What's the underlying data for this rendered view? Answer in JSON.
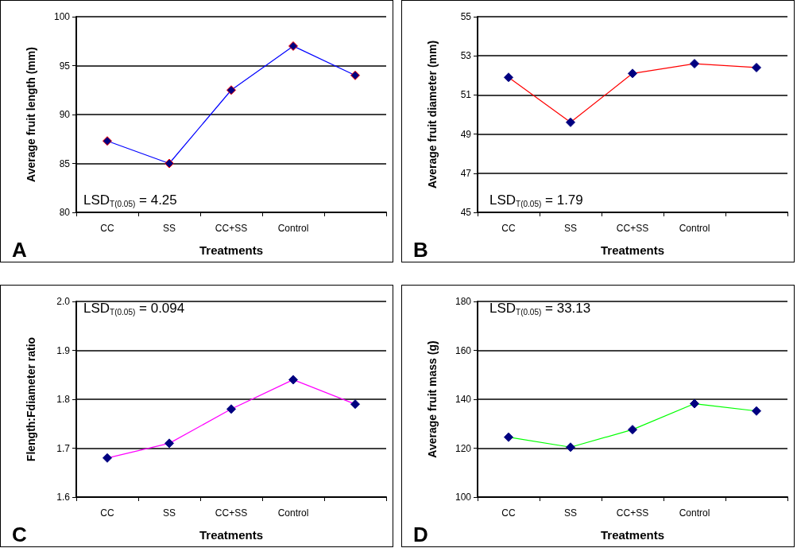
{
  "chart_data": [
    {
      "type": "line",
      "categories": [
        "CC",
        "SS",
        "CC+SS",
        "Control",
        null
      ],
      "xlabel": "Treatments",
      "ylabel": "Average fruit length (mm)",
      "series": [
        {
          "color": "#0000ff",
          "values": [
            87.3,
            85.0,
            92.5,
            97.0,
            94.0
          ]
        }
      ],
      "ylim": [
        80,
        100
      ],
      "yticks": [
        80,
        85,
        90,
        95,
        100
      ],
      "grid": "y",
      "marker": "diamond",
      "annotations": [
        "A",
        "LSD$_{T(0.05)}$ = 4.25"
      ]
    },
    {
      "type": "line",
      "categories": [
        "CC",
        "SS",
        "CC+SS",
        "Control",
        null
      ],
      "xlabel": "Treatments",
      "ylabel": "Average fruit diameter (mm)",
      "series": [
        {
          "color": "#ff0000",
          "values": [
            51.9,
            49.6,
            52.1,
            52.6,
            52.4
          ]
        }
      ],
      "ylim": [
        45,
        55
      ],
      "yticks": [
        45,
        47,
        49,
        51,
        53,
        55
      ],
      "grid": "y",
      "marker": "diamond",
      "annotations": [
        "B",
        "LSD$_{T(0.05)}$ = 1.79"
      ]
    },
    {
      "type": "line",
      "categories": [
        "CC",
        "SS",
        "CC+SS",
        "Control",
        null
      ],
      "xlabel": "Treatments",
      "ylabel": "Flength:Fdiameter ratio",
      "series": [
        {
          "color": "#ff00ff",
          "values": [
            1.68,
            1.71,
            1.78,
            1.84,
            1.79
          ]
        }
      ],
      "ylim": [
        1.6,
        2.0
      ],
      "yticks": [
        {
          "value": 1.6,
          "label": "1.6"
        },
        {
          "value": 1.7,
          "label": "1.7"
        },
        {
          "value": 1.8,
          "label": "1.8"
        },
        {
          "value": 1.9,
          "label": "1.9"
        },
        {
          "value": 2.0,
          "label": "2.0"
        }
      ],
      "grid": "y",
      "marker": "diamond",
      "annotations": [
        "C",
        "LSD$_{T(0.05)}$ = 0.094"
      ]
    },
    {
      "type": "line",
      "categories": [
        "CC",
        "SS",
        "CC+SS",
        "Control",
        null
      ],
      "xlabel": "Treatments",
      "ylabel": "Average fruit mass (g)",
      "series": [
        {
          "color": "#00ff00",
          "values": [
            124.5,
            120.4,
            127.6,
            138.2,
            135.2
          ]
        }
      ],
      "ylim": [
        100,
        180
      ],
      "yticks": [
        100,
        120,
        140,
        160,
        180
      ],
      "grid": "y",
      "marker": "diamond",
      "annotations": [
        "D",
        "LSD$_{T(0.05)}$ = 33.13"
      ]
    }
  ]
}
